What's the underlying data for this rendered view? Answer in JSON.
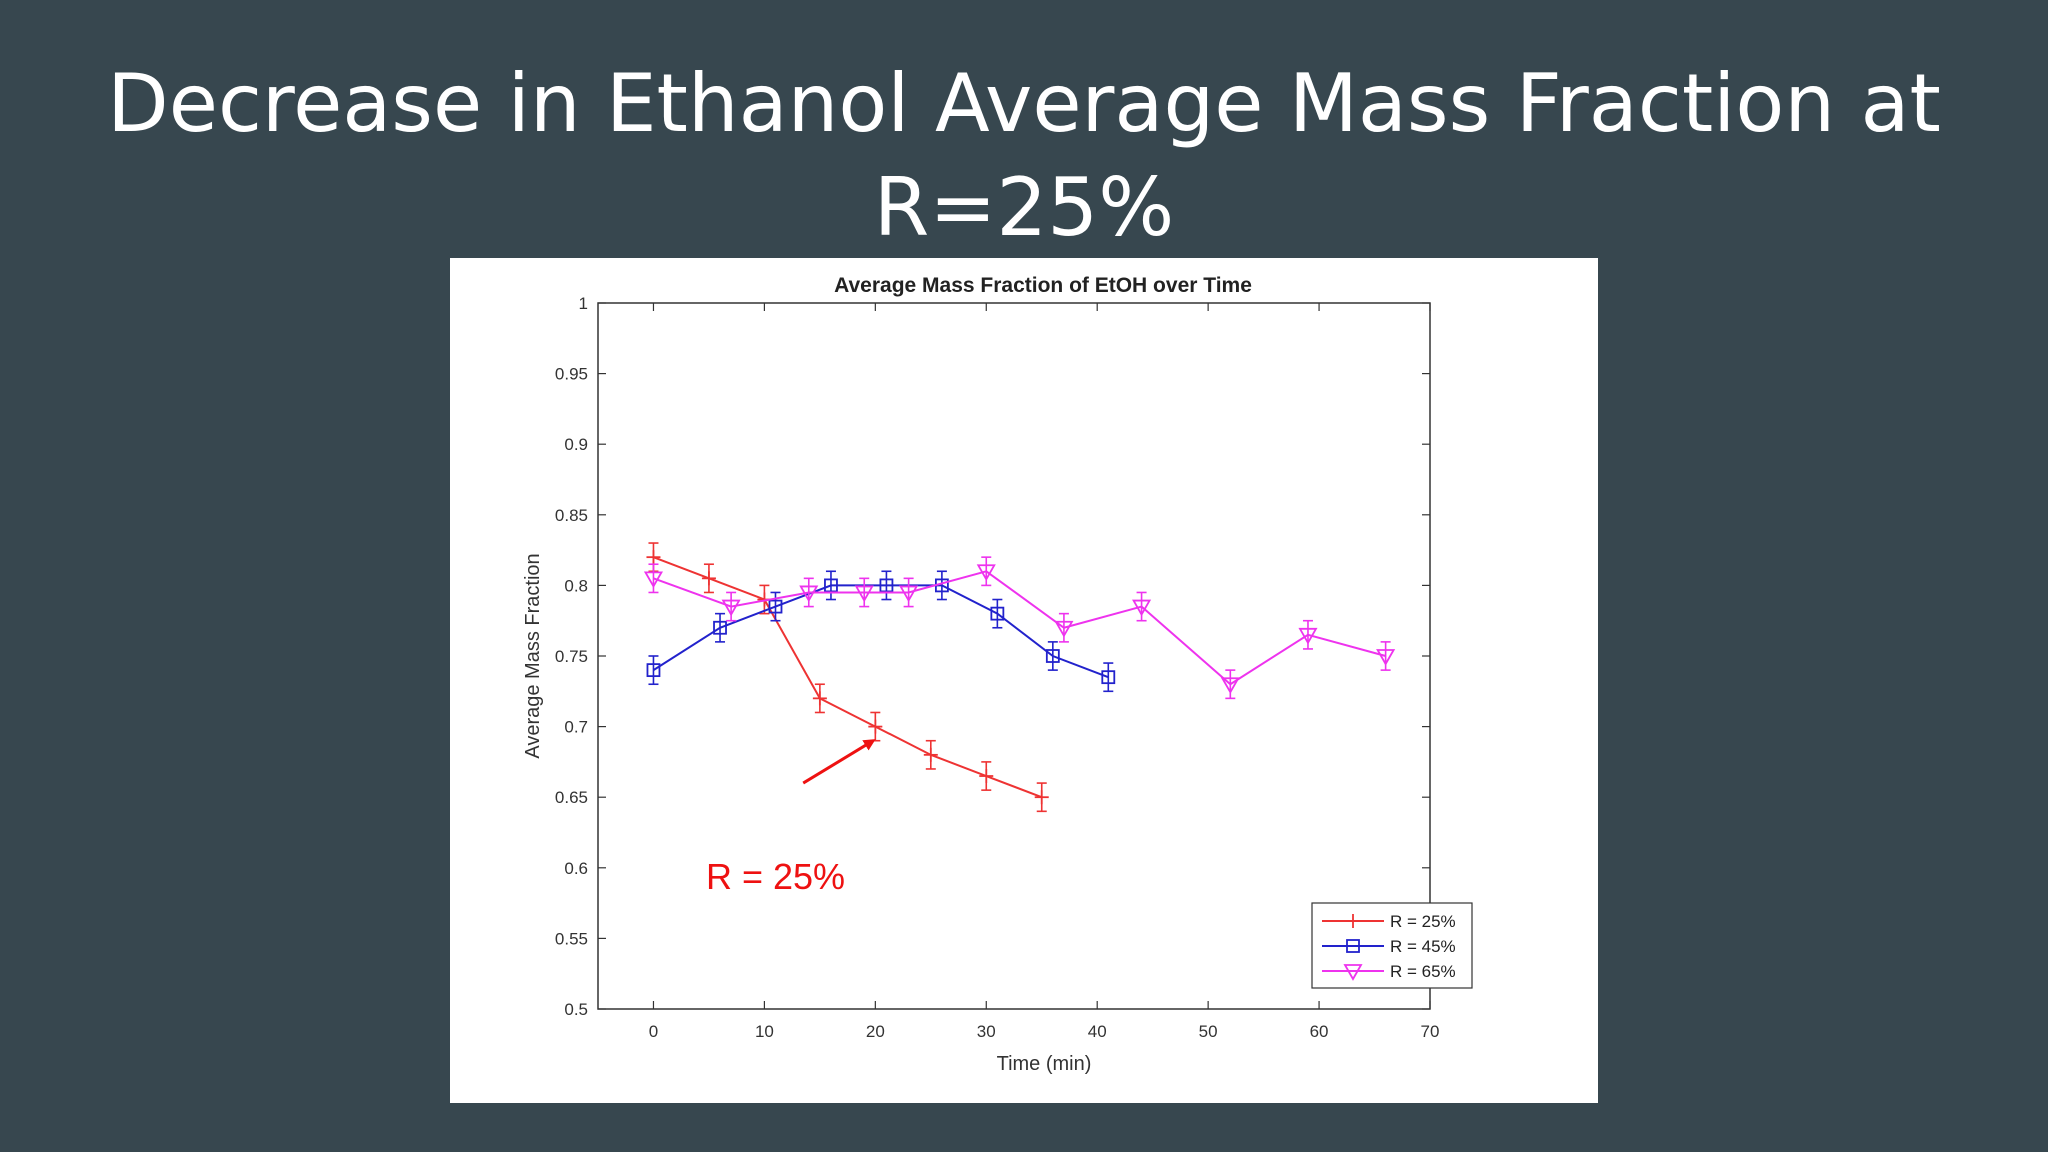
{
  "slide": {
    "title_line1": "Decrease in Ethanol Average Mass Fraction at",
    "title_line2": "R=25%"
  },
  "colors": {
    "background": "#37474f",
    "series_r25": "#ee3333",
    "series_r45": "#2222cc",
    "series_r65": "#ee33ee",
    "annotation": "#ee1111"
  },
  "chart_data": {
    "type": "line",
    "title": "Average Mass Fraction of EtOH over Time",
    "xlabel": "Time (min)",
    "ylabel": "Average Mass Fraction",
    "xlim": [
      -5,
      70
    ],
    "ylim": [
      0.5,
      1
    ],
    "xticks": [
      "0",
      "10",
      "20",
      "30",
      "40",
      "50",
      "60",
      "70"
    ],
    "yticks": [
      "0.5",
      "0.55",
      "0.6",
      "0.65",
      "0.7",
      "0.75",
      "0.8",
      "0.85",
      "0.9",
      "0.95",
      "1"
    ],
    "grid": false,
    "legend_position": "bottom-right",
    "series": [
      {
        "name": "R = 25%",
        "marker": "plus",
        "x": [
          0,
          5,
          10,
          15,
          20,
          25,
          30,
          35
        ],
        "y": [
          0.82,
          0.805,
          0.79,
          0.72,
          0.7,
          0.68,
          0.665,
          0.65
        ],
        "error": [
          0.01,
          0.01,
          0.01,
          0.01,
          0.01,
          0.01,
          0.01,
          0.01
        ]
      },
      {
        "name": "R = 45%",
        "marker": "square",
        "x": [
          0,
          6,
          11,
          16,
          21,
          26,
          31,
          36,
          41
        ],
        "y": [
          0.74,
          0.77,
          0.785,
          0.8,
          0.8,
          0.8,
          0.78,
          0.75,
          0.735
        ],
        "error": [
          0.01,
          0.01,
          0.01,
          0.01,
          0.01,
          0.01,
          0.01,
          0.01,
          0.01
        ]
      },
      {
        "name": "R = 65%",
        "marker": "triangle-down",
        "x": [
          0,
          7,
          14,
          19,
          23,
          30,
          37,
          44,
          52,
          59,
          66
        ],
        "y": [
          0.805,
          0.785,
          0.795,
          0.795,
          0.795,
          0.81,
          0.77,
          0.785,
          0.73,
          0.765,
          0.75
        ],
        "error": [
          0.01,
          0.01,
          0.01,
          0.01,
          0.01,
          0.01,
          0.01,
          0.01,
          0.01,
          0.01,
          0.01
        ]
      }
    ],
    "annotation": {
      "text": "R = 25%",
      "arrow_from": [
        13.5,
        0.66
      ],
      "arrow_to": [
        19.8,
        0.69
      ],
      "text_at": [
        11,
        0.585
      ]
    }
  }
}
